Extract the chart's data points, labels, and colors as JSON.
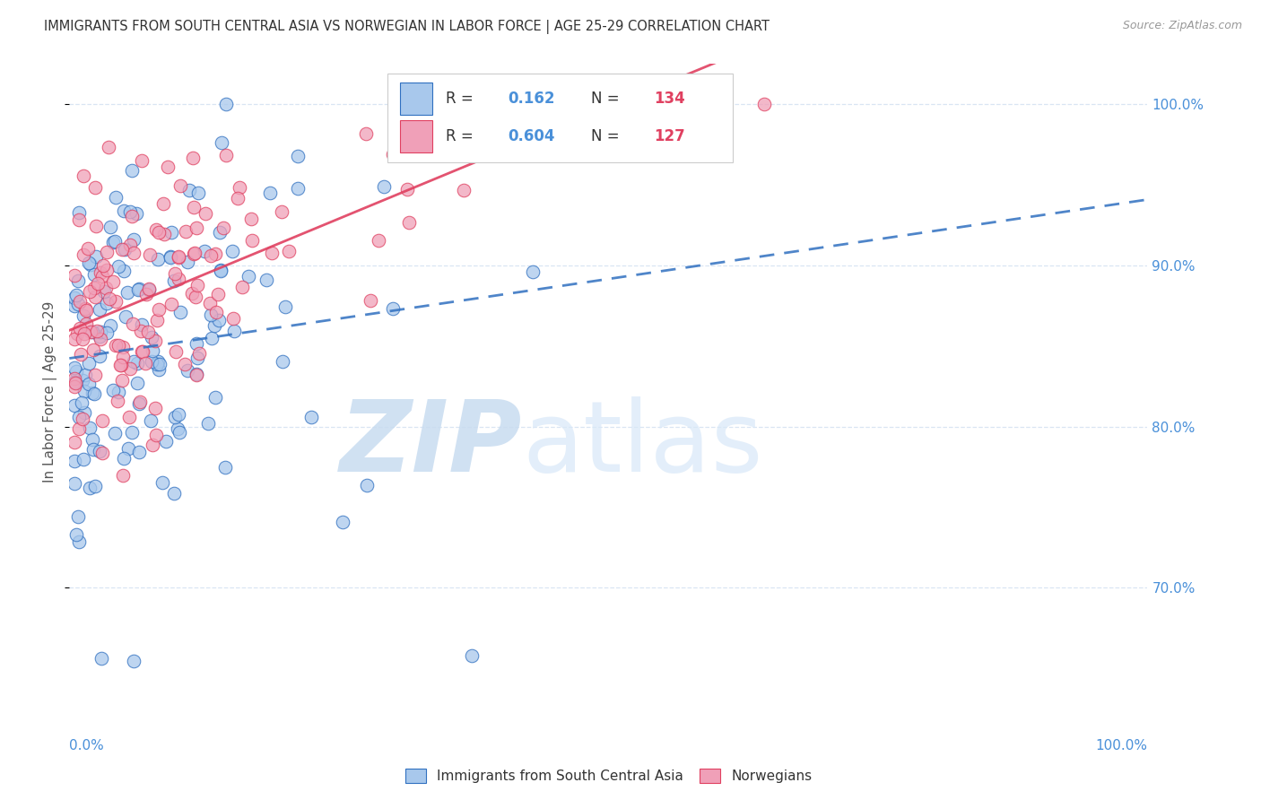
{
  "title": "IMMIGRANTS FROM SOUTH CENTRAL ASIA VS NORWEGIAN IN LABOR FORCE | AGE 25-29 CORRELATION CHART",
  "source": "Source: ZipAtlas.com",
  "ylabel": "In Labor Force | Age 25-29",
  "blue_color": "#A8C8EC",
  "pink_color": "#F0A0B8",
  "blue_line_color": "#3070C0",
  "pink_line_color": "#E04060",
  "blue_R": 0.162,
  "blue_N": 134,
  "pink_R": 0.604,
  "pink_N": 127,
  "legend_label_blue": "Immigrants from South Central Asia",
  "legend_label_pink": "Norwegians",
  "title_color": "#333333",
  "axis_tick_color": "#4A90D9",
  "ylabel_color": "#555555",
  "grid_color": "#D0DFF0",
  "watermark_zip_color": "#C8DCF0",
  "watermark_atlas_color": "#D8E8F8",
  "xlim": [
    0.0,
    1.0
  ],
  "ylim": [
    0.618,
    1.025
  ],
  "yticks": [
    0.7,
    0.8,
    0.9,
    1.0
  ],
  "ytick_labels": [
    "70.0%",
    "80.0%",
    "90.0%",
    "100.0%"
  ],
  "legend_text_color": "#333333",
  "legend_value_color": "#4A90D9",
  "legend_N_color": "#E04060"
}
